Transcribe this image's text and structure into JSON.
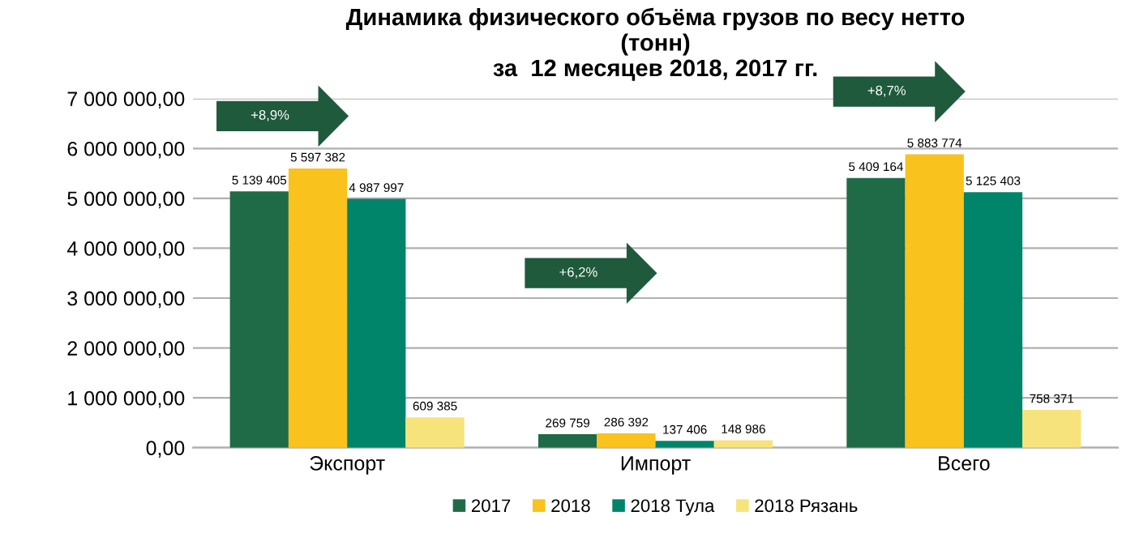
{
  "chart_data": {
    "type": "bar",
    "title": "Динамика физического объёма грузов по весу нетто\n(тонн)\nза  12 месяцев 2018, 2017 гг.",
    "categories": [
      "Экспорт",
      "Импорт",
      "Всего"
    ],
    "series": [
      {
        "name": "2017",
        "color": "#1f6b47",
        "values": [
          5139405,
          269759,
          5409164
        ],
        "value_labels": [
          "5 139 405",
          "269 759",
          "5 409 164"
        ]
      },
      {
        "name": "2018",
        "color": "#f9c21c",
        "values": [
          5597382,
          286392,
          5883774
        ],
        "value_labels": [
          "5 597 382",
          "286 392",
          "5 883 774"
        ]
      },
      {
        "name": "2018 Тула",
        "color": "#00846a",
        "values": [
          4987997,
          137406,
          5125403
        ],
        "value_labels": [
          "4 987 997",
          "137 406",
          "5 125 403"
        ]
      },
      {
        "name": "2018 Рязань",
        "color": "#f7e37c",
        "values": [
          609385,
          148986,
          758371
        ],
        "value_labels": [
          "609 385",
          "148 986",
          "758 371"
        ]
      }
    ],
    "annotations": [
      "+8,9%",
      "+6,2%",
      "+8,7%"
    ],
    "ylim": [
      0,
      7000000
    ],
    "yticks": [
      {
        "value": 0,
        "label": "0,00"
      },
      {
        "value": 1000000,
        "label": "1 000 000,00"
      },
      {
        "value": 2000000,
        "label": "2 000 000,00"
      },
      {
        "value": 3000000,
        "label": "3 000 000,00"
      },
      {
        "value": 4000000,
        "label": "4 000 000,00"
      },
      {
        "value": 5000000,
        "label": "5 000 000,00"
      },
      {
        "value": 6000000,
        "label": "6 000 000,00"
      },
      {
        "value": 7000000,
        "label": "7 000 000,00"
      }
    ],
    "grid": "y",
    "legend": "bottom"
  }
}
